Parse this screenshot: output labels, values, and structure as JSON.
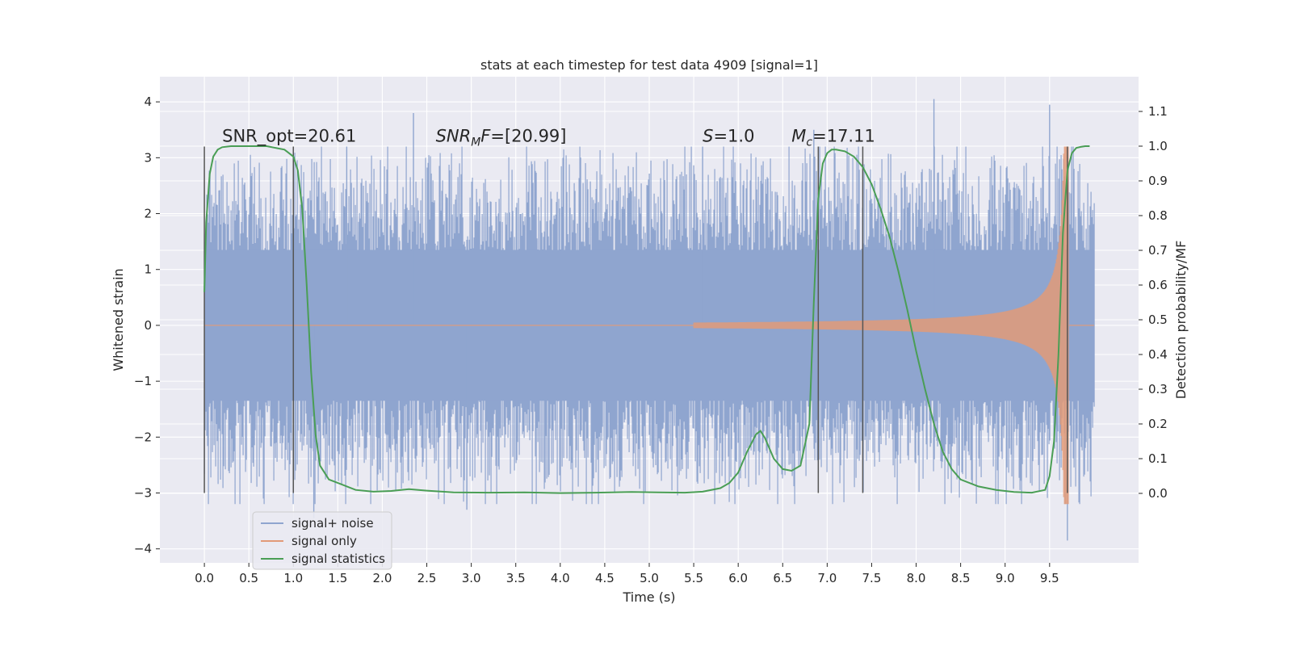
{
  "chart_data": {
    "type": "line",
    "title": "stats at each timestep for test data 4909 [signal=1]",
    "xlabel": "Time (s)",
    "ylabel": "Whitened strain",
    "y2label": "Detection probability/MF",
    "xlim": [
      -0.5,
      10.5
    ],
    "ylim": [
      -4.25,
      4.45
    ],
    "y2lim": [
      -0.2,
      1.2
    ],
    "xticks": [
      0.0,
      0.5,
      1.0,
      1.5,
      2.0,
      2.5,
      3.0,
      3.5,
      4.0,
      4.5,
      5.0,
      5.5,
      6.0,
      6.5,
      7.0,
      7.5,
      8.0,
      8.5,
      9.0,
      9.5
    ],
    "xtick_labels": [
      "0.0",
      "0.5",
      "1.0",
      "1.5",
      "2.0",
      "2.5",
      "3.0",
      "3.5",
      "4.0",
      "4.5",
      "5.0",
      "5.5",
      "6.0",
      "6.5",
      "7.0",
      "7.5",
      "8.0",
      "8.5",
      "9.0",
      "9.5"
    ],
    "yticks": [
      -4,
      -3,
      -2,
      -1,
      0,
      1,
      2,
      3,
      4
    ],
    "ytick_labels": [
      "−4",
      "−3",
      "−2",
      "−1",
      "0",
      "1",
      "2",
      "3",
      "4"
    ],
    "y2ticks": [
      0.0,
      0.1,
      0.2,
      0.3,
      0.4,
      0.5,
      0.6,
      0.7,
      0.8,
      0.9,
      1.0,
      1.1
    ],
    "y2tick_labels": [
      "0.0",
      "0.1",
      "0.2",
      "0.3",
      "0.4",
      "0.5",
      "0.6",
      "0.7",
      "0.8",
      "0.9",
      "1.0",
      "1.1"
    ],
    "grid": true,
    "legend_position": "lower-left",
    "annotations": [
      {
        "x": 0.2,
        "y": 3.2,
        "text": "SNR_opt=20.61"
      },
      {
        "x": 2.6,
        "y": 3.2,
        "text": "SNRMF=[20.99]"
      },
      {
        "x": 5.6,
        "y": 3.2,
        "text": "S=1.0"
      },
      {
        "x": 6.6,
        "y": 3.2,
        "text": "Mc=17.11"
      }
    ],
    "vertical_markers": [
      0.0,
      1.0,
      6.9,
      7.4,
      9.7
    ],
    "vertical_marker_range": [
      -3.0,
      3.2
    ],
    "series": [
      {
        "name": "signal+ noise",
        "color": "#8fa5cf",
        "kind": "noise-strain",
        "x_range": [
          0.0,
          10.0
        ],
        "envelope_abs": 2.3,
        "extremes": [
          {
            "x": 2.35,
            "y": 3.8
          },
          {
            "x": 8.2,
            "y": 4.05
          },
          {
            "x": 9.5,
            "y": 3.95
          },
          {
            "x": 1.23,
            "y": -3.45
          },
          {
            "x": 2.95,
            "y": -3.3
          },
          {
            "x": 9.7,
            "y": -3.85
          },
          {
            "x": 6.85,
            "y": 3.5
          },
          {
            "x": 1.6,
            "y": 3.2
          },
          {
            "x": 5.6,
            "y": 3.2
          }
        ]
      },
      {
        "name": "signal only",
        "color": "#e29a78",
        "kind": "chirp",
        "x_range": [
          5.5,
          10.0
        ],
        "merger_time": 9.7,
        "peak_amplitude": 3.2
      },
      {
        "name": "signal statistics",
        "color": "#4a9e55",
        "axis": "right",
        "x": [
          0.0,
          0.02,
          0.06,
          0.1,
          0.15,
          0.2,
          0.3,
          0.5,
          0.7,
          0.9,
          0.95,
          1.0,
          1.05,
          1.1,
          1.15,
          1.2,
          1.25,
          1.3,
          1.4,
          1.5,
          1.7,
          1.9,
          2.1,
          2.3,
          2.5,
          2.8,
          3.2,
          3.6,
          4.0,
          4.4,
          4.8,
          5.1,
          5.4,
          5.6,
          5.8,
          5.9,
          6.0,
          6.1,
          6.2,
          6.25,
          6.3,
          6.4,
          6.5,
          6.6,
          6.7,
          6.8,
          6.85,
          6.9,
          6.95,
          7.0,
          7.05,
          7.1,
          7.2,
          7.3,
          7.4,
          7.5,
          7.6,
          7.7,
          7.8,
          7.9,
          8.0,
          8.1,
          8.2,
          8.3,
          8.4,
          8.5,
          8.7,
          8.9,
          9.1,
          9.3,
          9.45,
          9.5,
          9.55,
          9.6,
          9.65,
          9.7,
          9.75,
          9.8,
          9.85,
          9.9,
          9.95
        ],
        "values": [
          0.58,
          0.78,
          0.92,
          0.97,
          0.99,
          0.997,
          1.0,
          1.0,
          1.0,
          0.99,
          0.98,
          0.97,
          0.93,
          0.82,
          0.6,
          0.35,
          0.17,
          0.08,
          0.04,
          0.03,
          0.01,
          0.005,
          0.007,
          0.012,
          0.008,
          0.003,
          0.002,
          0.003,
          0.001,
          0.002,
          0.004,
          0.003,
          0.002,
          0.005,
          0.015,
          0.03,
          0.06,
          0.12,
          0.17,
          0.18,
          0.16,
          0.1,
          0.07,
          0.065,
          0.08,
          0.2,
          0.55,
          0.85,
          0.95,
          0.98,
          0.99,
          0.99,
          0.985,
          0.97,
          0.94,
          0.89,
          0.82,
          0.74,
          0.64,
          0.53,
          0.41,
          0.3,
          0.2,
          0.12,
          0.07,
          0.04,
          0.02,
          0.01,
          0.004,
          0.002,
          0.01,
          0.05,
          0.15,
          0.4,
          0.75,
          0.93,
          0.98,
          0.995,
          0.998,
          1.0,
          1.0
        ]
      }
    ]
  }
}
